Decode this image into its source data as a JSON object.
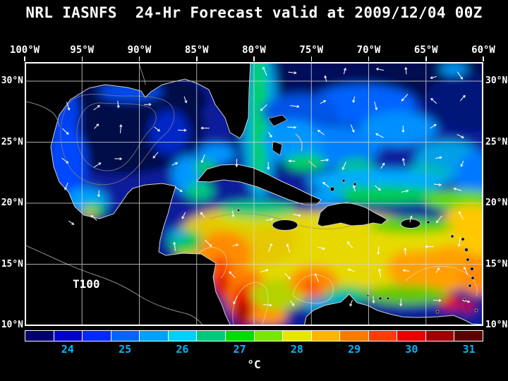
{
  "title": "NRL IASNFS  24-Hr Forecast valid at 2009/12/04 00Z",
  "map": {
    "overlay_label": "T100",
    "lon_ticks": [
      "100°W",
      "95°W",
      "90°W",
      "85°W",
      "80°W",
      "75°W",
      "70°W",
      "65°W",
      "60°W"
    ],
    "lat_ticks_left": [
      "30°N",
      "25°N",
      "20°N",
      "15°N",
      "10°N"
    ],
    "lat_ticks_right": [
      "30°N",
      "25°N",
      "20°N",
      "15°N",
      "10°N"
    ]
  },
  "colorbar": {
    "unit": "°C",
    "tick_labels": [
      "24",
      "25",
      "26",
      "27",
      "28",
      "29",
      "30",
      "31"
    ],
    "tick_color": "#00b4ff",
    "segment_colors": [
      "#000070",
      "#0000c8",
      "#0028ff",
      "#0064ff",
      "#00a0ff",
      "#00d0ff",
      "#00c87d",
      "#00dc00",
      "#78e600",
      "#e6e600",
      "#ffb400",
      "#ff7800",
      "#ff3c00",
      "#e60000",
      "#a00000",
      "#5a0000"
    ]
  },
  "chart_data": {
    "type": "heatmap",
    "title": "NRL IASNFS 24-Hr Forecast valid at 2009/12/04 00Z",
    "field": "T100",
    "unit": "°C",
    "colorbar_ticks": [
      24,
      25,
      26,
      27,
      28,
      29,
      30,
      31
    ],
    "x_axis_ticks": [
      "100°W",
      "95°W",
      "90°W",
      "85°W",
      "80°W",
      "75°W",
      "70°W",
      "65°W",
      "60°W"
    ],
    "y_axis_ticks": [
      "30°N",
      "25°N",
      "20°N",
      "15°N",
      "10°N"
    ]
  }
}
